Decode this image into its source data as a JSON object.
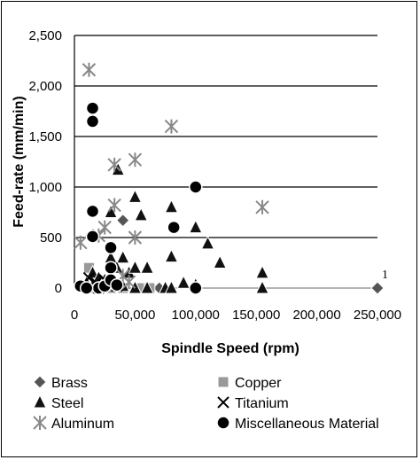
{
  "chart_data": {
    "type": "scatter",
    "title": "",
    "xlabel": "Spindle Speed (rpm)",
    "ylabel": "Feed-rate (mm/min)",
    "xlim": [
      0,
      250000
    ],
    "ylim": [
      0,
      2500
    ],
    "x_ticks": [
      "0",
      "50,000",
      "100,000",
      "150,000",
      "200,000",
      "250,000"
    ],
    "y_ticks": [
      "0",
      "500",
      "1,000",
      "1,500",
      "2,000",
      "2,500"
    ],
    "x_tick_values": [
      0,
      50000,
      100000,
      150000,
      200000,
      250000
    ],
    "y_tick_values": [
      0,
      500,
      1000,
      1500,
      2000,
      2500
    ],
    "grid": "horizontal",
    "legend_position": "bottom",
    "annotations": [
      {
        "text": "1",
        "x": 250000,
        "y": 0
      }
    ],
    "series": [
      {
        "name": "Brass",
        "marker": "diamond",
        "color": "#555555",
        "points": [
          [
            40000,
            670
          ],
          [
            250000,
            0
          ],
          [
            70000,
            0
          ],
          [
            30000,
            0
          ]
        ]
      },
      {
        "name": "Copper",
        "marker": "square",
        "color": "#999999",
        "points": [
          [
            12000,
            200
          ],
          [
            20000,
            30
          ],
          [
            30000,
            0
          ],
          [
            40000,
            0
          ],
          [
            56000,
            0
          ],
          [
            62000,
            0
          ],
          [
            10000,
            0
          ],
          [
            15000,
            0
          ]
        ]
      },
      {
        "name": "Steel",
        "marker": "triangle",
        "color": "#111111",
        "points": [
          [
            36000,
            1170
          ],
          [
            50000,
            900
          ],
          [
            80000,
            800
          ],
          [
            30000,
            750
          ],
          [
            55000,
            720
          ],
          [
            100000,
            600
          ],
          [
            110000,
            440
          ],
          [
            80000,
            310
          ],
          [
            120000,
            250
          ],
          [
            30000,
            300
          ],
          [
            40000,
            300
          ],
          [
            35000,
            200
          ],
          [
            45000,
            150
          ],
          [
            50000,
            200
          ],
          [
            60000,
            200
          ],
          [
            15000,
            150
          ],
          [
            20000,
            100
          ],
          [
            25000,
            80
          ],
          [
            90000,
            50
          ],
          [
            100000,
            30
          ],
          [
            155000,
            150
          ],
          [
            155000,
            0
          ],
          [
            10000,
            50
          ],
          [
            15000,
            20
          ],
          [
            40000,
            20
          ],
          [
            50000,
            0
          ],
          [
            60000,
            0
          ],
          [
            75000,
            0
          ],
          [
            80000,
            0
          ]
        ]
      },
      {
        "name": "Titanium",
        "marker": "x",
        "color": "#000000",
        "points": [
          [
            12000,
            100
          ],
          [
            18000,
            50
          ],
          [
            25000,
            80
          ],
          [
            20000,
            0
          ],
          [
            35000,
            20
          ],
          [
            15000,
            0
          ]
        ]
      },
      {
        "name": "Aluminum",
        "marker": "asterisk",
        "color": "#888888",
        "points": [
          [
            12000,
            2160
          ],
          [
            80000,
            1600
          ],
          [
            50000,
            1270
          ],
          [
            33000,
            1220
          ],
          [
            155000,
            800
          ],
          [
            33000,
            820
          ],
          [
            50000,
            500
          ],
          [
            25000,
            600
          ],
          [
            5000,
            450
          ],
          [
            20000,
            520
          ],
          [
            40000,
            120
          ],
          [
            45000,
            60
          ]
        ]
      },
      {
        "name": "Miscellaneous Material",
        "marker": "circle",
        "color": "#000000",
        "points": [
          [
            15000,
            1780
          ],
          [
            15000,
            1650
          ],
          [
            100000,
            1000
          ],
          [
            15000,
            760
          ],
          [
            82000,
            600
          ],
          [
            15000,
            510
          ],
          [
            30000,
            400
          ],
          [
            30000,
            200
          ],
          [
            5000,
            20
          ],
          [
            20000,
            0
          ],
          [
            25000,
            20
          ],
          [
            30000,
            80
          ],
          [
            100000,
            0
          ],
          [
            35000,
            30
          ],
          [
            10000,
            0
          ]
        ]
      }
    ]
  }
}
